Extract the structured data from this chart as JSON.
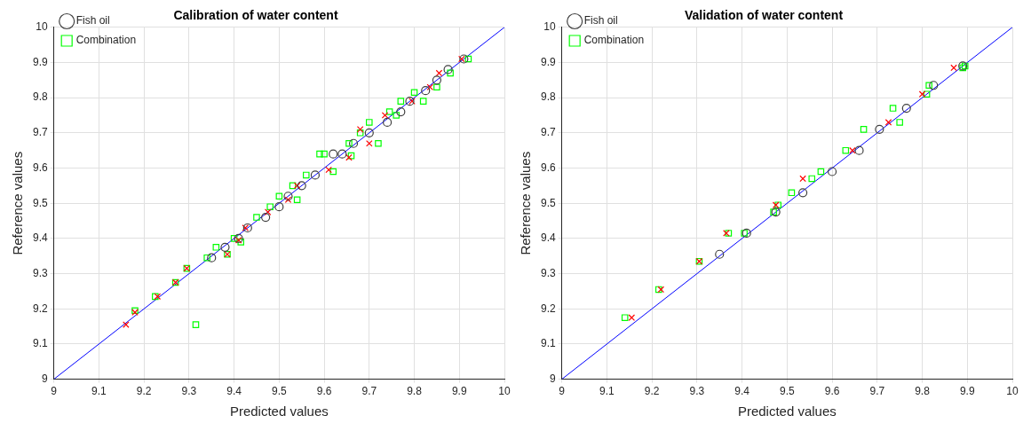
{
  "chart_data": [
    {
      "type": "scatter",
      "title": "Calibration of water content",
      "xlabel": "Predicted values",
      "ylabel": "Reference values",
      "xlim": [
        9,
        10
      ],
      "ylim": [
        9,
        10
      ],
      "xticks": [
        9,
        9.1,
        9.2,
        9.3,
        9.4,
        9.5,
        9.6,
        9.7,
        9.8,
        9.9,
        10
      ],
      "yticks": [
        9,
        9.1,
        9.2,
        9.3,
        9.4,
        9.5,
        9.6,
        9.7,
        9.8,
        9.9,
        10
      ],
      "grid": true,
      "legend": "top left",
      "series": [
        {
          "name": "Fish oil",
          "color": "#404040",
          "marker": "circle",
          "x": [
            9.35,
            9.38,
            9.41,
            9.43,
            9.47,
            9.5,
            9.52,
            9.55,
            9.58,
            9.62,
            9.64,
            9.665,
            9.7,
            9.74,
            9.77,
            9.79,
            9.825,
            9.85,
            9.875,
            9.91
          ],
          "values": [
            9.345,
            9.375,
            9.4,
            9.43,
            9.46,
            9.49,
            9.52,
            9.55,
            9.58,
            9.64,
            9.64,
            9.67,
            9.7,
            9.73,
            9.76,
            9.79,
            9.82,
            9.85,
            9.88,
            9.91
          ]
        },
        {
          "color": "#ff0000",
          "marker": "cross",
          "x": [
            9.16,
            9.18,
            9.23,
            9.27,
            9.295,
            9.385,
            9.41,
            9.425,
            9.475,
            9.52,
            9.54,
            9.61,
            9.655,
            9.68,
            9.7,
            9.735,
            9.795,
            9.835,
            9.855,
            9.905
          ],
          "values": [
            9.155,
            9.19,
            9.235,
            9.275,
            9.315,
            9.355,
            9.395,
            9.43,
            9.475,
            9.51,
            9.55,
            9.595,
            9.63,
            9.71,
            9.67,
            9.75,
            9.79,
            9.83,
            9.87,
            9.91
          ]
        },
        {
          "name": "Combination",
          "color": "#00ff00",
          "marker": "square",
          "x": [
            9.18,
            9.225,
            9.27,
            9.295,
            9.315,
            9.34,
            9.36,
            9.385,
            9.4,
            9.415,
            9.45,
            9.48,
            9.5,
            9.53,
            9.54,
            9.56,
            9.59,
            9.6,
            9.62,
            9.655,
            9.66,
            9.68,
            9.7,
            9.72,
            9.745,
            9.76,
            9.77,
            9.8,
            9.82,
            9.85,
            9.88,
            9.92
          ],
          "values": [
            9.195,
            9.235,
            9.275,
            9.315,
            9.155,
            9.345,
            9.375,
            9.355,
            9.4,
            9.39,
            9.46,
            9.49,
            9.52,
            9.55,
            9.51,
            9.58,
            9.64,
            9.64,
            9.59,
            9.67,
            9.635,
            9.7,
            9.73,
            9.67,
            9.76,
            9.75,
            9.79,
            9.815,
            9.79,
            9.83,
            9.87,
            9.91
          ]
        },
        {
          "type": "line",
          "color": "#0000ff",
          "marker": "none",
          "x": [
            9,
            10
          ],
          "values": [
            9,
            10
          ]
        }
      ]
    },
    {
      "type": "scatter",
      "title": "Validation of water content",
      "xlabel": "Predicted values",
      "ylabel": "Reference values",
      "xlim": [
        9,
        10
      ],
      "ylim": [
        9,
        10
      ],
      "xticks": [
        9,
        9.1,
        9.2,
        9.3,
        9.4,
        9.5,
        9.6,
        9.7,
        9.8,
        9.9,
        10
      ],
      "yticks": [
        9,
        9.1,
        9.2,
        9.3,
        9.4,
        9.5,
        9.6,
        9.7,
        9.8,
        9.9,
        10
      ],
      "grid": true,
      "legend": "top left",
      "series": [
        {
          "name": "Fish oil",
          "color": "#404040",
          "marker": "circle",
          "x": [
            9.35,
            9.41,
            9.475,
            9.535,
            9.6,
            9.66,
            9.705,
            9.765,
            9.825,
            9.89
          ],
          "values": [
            9.355,
            9.415,
            9.475,
            9.53,
            9.59,
            9.65,
            9.71,
            9.77,
            9.835,
            9.89
          ]
        },
        {
          "color": "#ff0000",
          "marker": "cross",
          "x": [
            9.155,
            9.22,
            9.305,
            9.365,
            9.475,
            9.535,
            9.645,
            9.725,
            9.8,
            9.87
          ],
          "values": [
            9.175,
            9.255,
            9.335,
            9.415,
            9.495,
            9.57,
            9.65,
            9.73,
            9.81,
            9.885
          ]
        },
        {
          "name": "Combination",
          "color": "#00ff00",
          "marker": "square",
          "x": [
            9.14,
            9.215,
            9.305,
            9.37,
            9.405,
            9.47,
            9.48,
            9.51,
            9.555,
            9.575,
            9.63,
            9.67,
            9.735,
            9.75,
            9.815,
            9.81,
            9.89,
            9.895
          ],
          "values": [
            9.175,
            9.255,
            9.335,
            9.415,
            9.415,
            9.475,
            9.495,
            9.53,
            9.57,
            9.59,
            9.65,
            9.71,
            9.77,
            9.73,
            9.835,
            9.81,
            9.885,
            9.89
          ]
        },
        {
          "type": "line",
          "color": "#0000ff",
          "marker": "none",
          "x": [
            9,
            10
          ],
          "values": [
            9,
            10
          ]
        }
      ]
    }
  ]
}
